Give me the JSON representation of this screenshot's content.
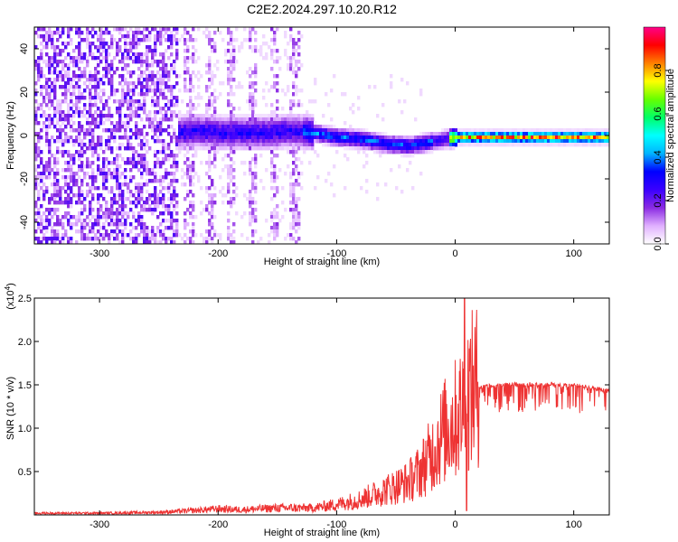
{
  "title": "C2E2.2024.297.10.20.R12",
  "chart_data": [
    {
      "type": "heatmap",
      "xlabel": "Height of straight line (km)",
      "ylabel": "Frequency (Hz)",
      "xlim": [
        -355,
        130
      ],
      "ylim": [
        -50,
        50
      ],
      "xticks": [
        -300,
        -200,
        -100,
        0,
        100
      ],
      "xtick_labels": [
        "-300",
        "-200",
        "-100",
        "0",
        "100"
      ],
      "yticks": [
        -40,
        -20,
        0,
        20,
        40
      ],
      "ytick_labels": [
        "-40",
        "-20",
        "0",
        "20",
        "40"
      ],
      "colorbar": {
        "label": "Normalized spectral amplitude",
        "range": [
          0,
          1
        ],
        "ticks": [
          0.0,
          0.2,
          0.4,
          0.6,
          0.8
        ],
        "tick_labels": [
          "0.0",
          "0.2",
          "0.4",
          "0.6",
          "0.8"
        ],
        "colors": [
          "#ffffff",
          "#e0b0ff",
          "#8a2be2",
          "#3a00ff",
          "#0000ff",
          "#00b4ff",
          "#00ffff",
          "#00ff66",
          "#66ff00",
          "#ffff00",
          "#ff8000",
          "#ff0000",
          "#ff0088"
        ]
      },
      "ridge": [
        {
          "x": -235,
          "f": 2
        },
        {
          "x": -220,
          "f": 3
        },
        {
          "x": -200,
          "f": 2
        },
        {
          "x": -160,
          "f": 2
        },
        {
          "x": -140,
          "f": 3
        },
        {
          "x": -120,
          "f": 2
        },
        {
          "x": -100,
          "f": 0
        },
        {
          "x": -80,
          "f": -1
        },
        {
          "x": -60,
          "f": -3
        },
        {
          "x": -40,
          "f": -4
        },
        {
          "x": -30,
          "f": -3
        },
        {
          "x": -20,
          "f": -2
        },
        {
          "x": -10,
          "f": -1
        },
        {
          "x": 0,
          "f": 0
        },
        {
          "x": 20,
          "f": 0
        },
        {
          "x": 60,
          "f": 0
        },
        {
          "x": 100,
          "f": 0
        },
        {
          "x": 130,
          "f": 0
        }
      ]
    },
    {
      "type": "line",
      "xlabel": "Height of straight line (km)",
      "ylabel": "SNR (10 * v/v)",
      "yscale_label": "(x10",
      "yscale_exponent": "4",
      "yscale_suffix": ")",
      "xlim": [
        -355,
        130
      ],
      "ylim": [
        0,
        2.5
      ],
      "xticks": [
        -300,
        -200,
        -100,
        0,
        100
      ],
      "xtick_labels": [
        "-300",
        "-200",
        "-100",
        "0",
        "100"
      ],
      "yticks": [
        0.5,
        1.0,
        1.5,
        2.0,
        2.5
      ],
      "ytick_labels": [
        "0.5",
        "1.0",
        "1.5",
        "2.0",
        "2.5"
      ],
      "color": "#ee3333",
      "x": [
        -355,
        -300,
        -250,
        -220,
        -200,
        -180,
        -150,
        -120,
        -100,
        -80,
        -60,
        -40,
        -30,
        -20,
        -10,
        0,
        5,
        10,
        15,
        20,
        30,
        40,
        50,
        60,
        70,
        80,
        90,
        100,
        110,
        120,
        130
      ],
      "y": [
        0.02,
        0.02,
        0.03,
        0.05,
        0.07,
        0.06,
        0.08,
        0.08,
        0.12,
        0.18,
        0.28,
        0.38,
        0.5,
        0.7,
        0.95,
        1.1,
        1.2,
        1.35,
        1.45,
        1.5,
        1.52,
        1.52,
        1.53,
        1.53,
        1.52,
        1.53,
        1.52,
        1.52,
        1.5,
        1.48,
        1.45
      ]
    }
  ]
}
